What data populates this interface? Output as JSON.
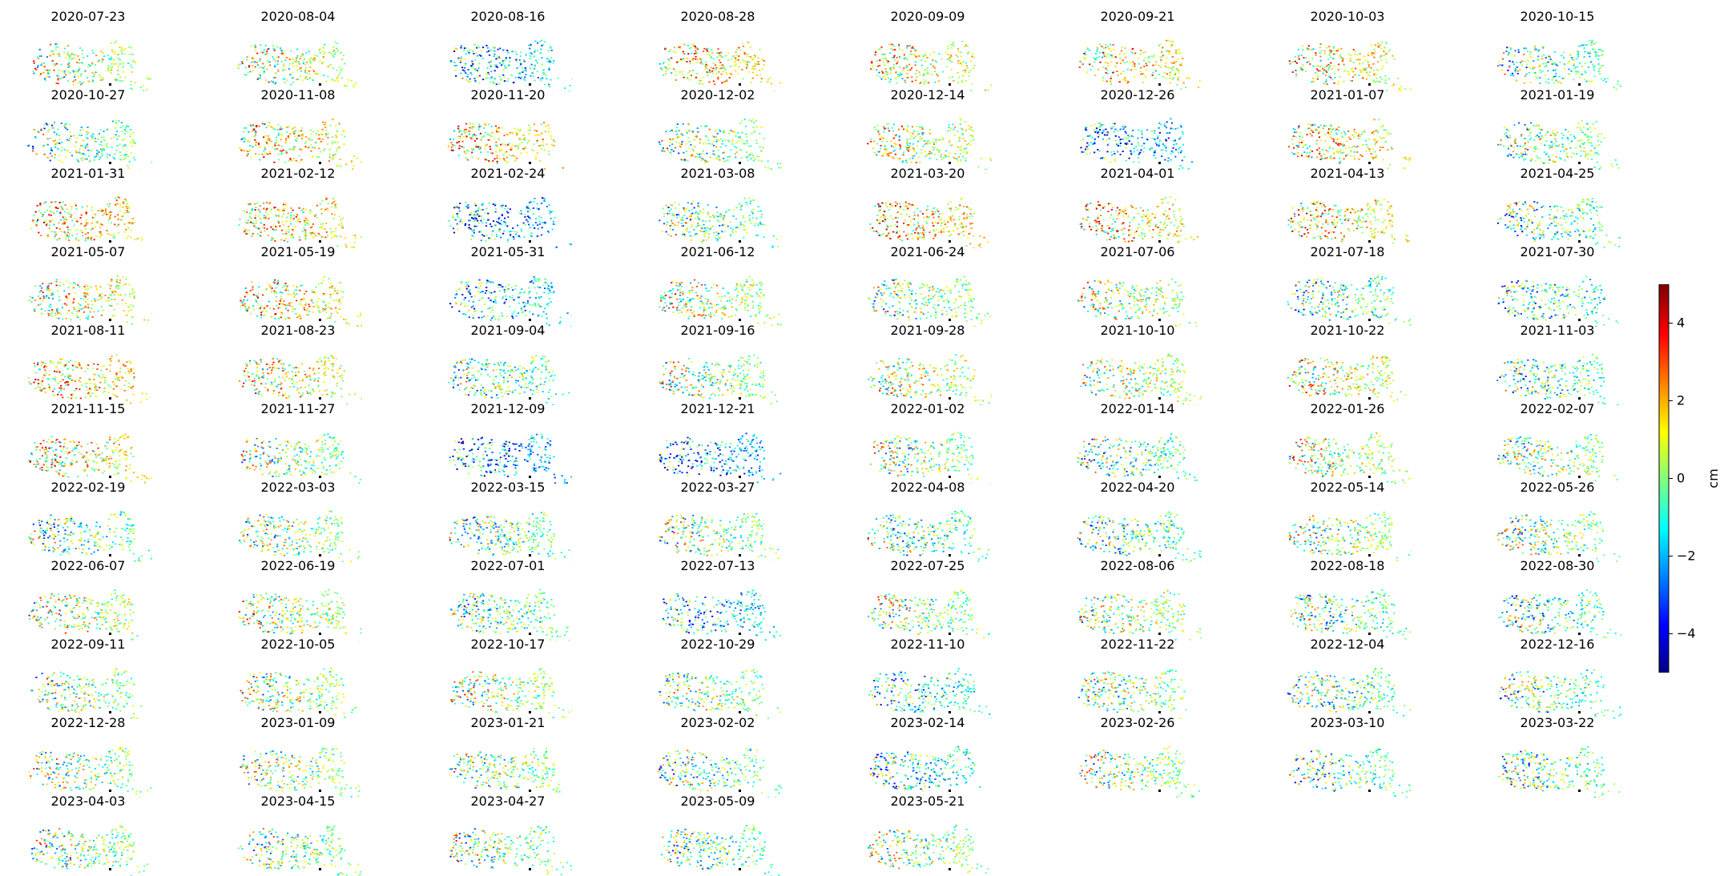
{
  "chart_data": {
    "type": "heatmap",
    "description_note": "",
    "panels": [
      {
        "date": "2020-07-23",
        "tone": 0.3
      },
      {
        "date": "2020-08-04",
        "tone": 0.5
      },
      {
        "date": "2020-08-16",
        "tone": -1.5
      },
      {
        "date": "2020-08-28",
        "tone": 1.5
      },
      {
        "date": "2020-09-09",
        "tone": 1.0
      },
      {
        "date": "2020-09-21",
        "tone": 1.2
      },
      {
        "date": "2020-10-03",
        "tone": 1.0
      },
      {
        "date": "2020-10-15",
        "tone": -0.5
      },
      {
        "date": "2020-10-27",
        "tone": -0.3
      },
      {
        "date": "2020-11-08",
        "tone": 1.0
      },
      {
        "date": "2020-11-20",
        "tone": 1.5
      },
      {
        "date": "2020-12-02",
        "tone": 0.0
      },
      {
        "date": "2020-12-14",
        "tone": 0.5
      },
      {
        "date": "2020-12-26",
        "tone": -2.0
      },
      {
        "date": "2021-01-07",
        "tone": 1.0
      },
      {
        "date": "2021-01-19",
        "tone": 0.0
      },
      {
        "date": "2021-01-31",
        "tone": 1.5
      },
      {
        "date": "2021-02-12",
        "tone": 1.3
      },
      {
        "date": "2021-02-24",
        "tone": -2.0
      },
      {
        "date": "2021-03-08",
        "tone": -0.5
      },
      {
        "date": "2021-03-20",
        "tone": 1.5
      },
      {
        "date": "2021-04-01",
        "tone": 1.3
      },
      {
        "date": "2021-04-13",
        "tone": 1.2
      },
      {
        "date": "2021-04-25",
        "tone": -0.5
      },
      {
        "date": "2021-05-07",
        "tone": 0.8
      },
      {
        "date": "2021-05-19",
        "tone": 1.2
      },
      {
        "date": "2021-05-31",
        "tone": -1.5
      },
      {
        "date": "2021-06-12",
        "tone": 0.5
      },
      {
        "date": "2021-06-24",
        "tone": 0.0
      },
      {
        "date": "2021-07-06",
        "tone": 0.3
      },
      {
        "date": "2021-07-18",
        "tone": -0.5
      },
      {
        "date": "2021-07-30",
        "tone": -1.0
      },
      {
        "date": "2021-08-11",
        "tone": 1.5
      },
      {
        "date": "2021-08-23",
        "tone": 1.0
      },
      {
        "date": "2021-09-04",
        "tone": -0.5
      },
      {
        "date": "2021-09-16",
        "tone": 0.0
      },
      {
        "date": "2021-09-28",
        "tone": 0.5
      },
      {
        "date": "2021-10-10",
        "tone": 0.5
      },
      {
        "date": "2021-10-22",
        "tone": 0.8
      },
      {
        "date": "2021-11-03",
        "tone": -0.5
      },
      {
        "date": "2021-11-15",
        "tone": 1.0
      },
      {
        "date": "2021-11-27",
        "tone": 0.0
      },
      {
        "date": "2021-12-09",
        "tone": -2.0
      },
      {
        "date": "2021-12-21",
        "tone": -2.2
      },
      {
        "date": "2022-01-02",
        "tone": 0.0
      },
      {
        "date": "2022-01-14",
        "tone": -0.5
      },
      {
        "date": "2022-01-26",
        "tone": 0.5
      },
      {
        "date": "2022-02-07",
        "tone": 0.0
      },
      {
        "date": "2022-02-19",
        "tone": -0.5
      },
      {
        "date": "2022-03-03",
        "tone": 0.0
      },
      {
        "date": "2022-03-15",
        "tone": -0.5
      },
      {
        "date": "2022-03-27",
        "tone": 0.0
      },
      {
        "date": "2022-04-08",
        "tone": -0.5
      },
      {
        "date": "2022-04-20",
        "tone": -0.5
      },
      {
        "date": "2022-05-14",
        "tone": 0.0
      },
      {
        "date": "2022-05-26",
        "tone": 0.0
      },
      {
        "date": "2022-06-07",
        "tone": 0.5
      },
      {
        "date": "2022-06-19",
        "tone": 0.5
      },
      {
        "date": "2022-07-01",
        "tone": -0.5
      },
      {
        "date": "2022-07-13",
        "tone": -1.5
      },
      {
        "date": "2022-07-25",
        "tone": 0.0
      },
      {
        "date": "2022-08-06",
        "tone": 0.3
      },
      {
        "date": "2022-08-18",
        "tone": -0.5
      },
      {
        "date": "2022-08-30",
        "tone": -0.5
      },
      {
        "date": "2022-09-11",
        "tone": 0.0
      },
      {
        "date": "2022-10-05",
        "tone": 0.0
      },
      {
        "date": "2022-10-17",
        "tone": 0.3
      },
      {
        "date": "2022-10-29",
        "tone": 0.0
      },
      {
        "date": "2022-11-10",
        "tone": -1.0
      },
      {
        "date": "2022-11-22",
        "tone": 0.0
      },
      {
        "date": "2022-12-04",
        "tone": -0.5
      },
      {
        "date": "2022-12-16",
        "tone": -0.5
      },
      {
        "date": "2022-12-28",
        "tone": 0.0
      },
      {
        "date": "2023-01-09",
        "tone": 0.0
      },
      {
        "date": "2023-01-21",
        "tone": 0.0
      },
      {
        "date": "2023-02-02",
        "tone": -0.5
      },
      {
        "date": "2023-02-14",
        "tone": -1.0
      },
      {
        "date": "2023-02-26",
        "tone": 0.0
      },
      {
        "date": "2023-03-10",
        "tone": -0.5
      },
      {
        "date": "2023-03-22",
        "tone": -0.5
      },
      {
        "date": "2023-04-03",
        "tone": 0.0
      },
      {
        "date": "2023-04-15",
        "tone": 0.0
      },
      {
        "date": "2023-04-27",
        "tone": 0.0
      },
      {
        "date": "2023-05-09",
        "tone": -0.5
      },
      {
        "date": "2023-05-21",
        "tone": 0.0
      }
    ],
    "grid": {
      "columns": 8,
      "rows": 11
    },
    "axes": "off",
    "colormap": "jet",
    "colorbar": {
      "label": "cm",
      "vmin": -5,
      "vmax": 5,
      "ticks": [
        -4,
        -2,
        0,
        2,
        4
      ],
      "tick_labels": [
        "−4",
        "−2",
        "0",
        "2",
        "4"
      ],
      "placement": "right"
    }
  }
}
